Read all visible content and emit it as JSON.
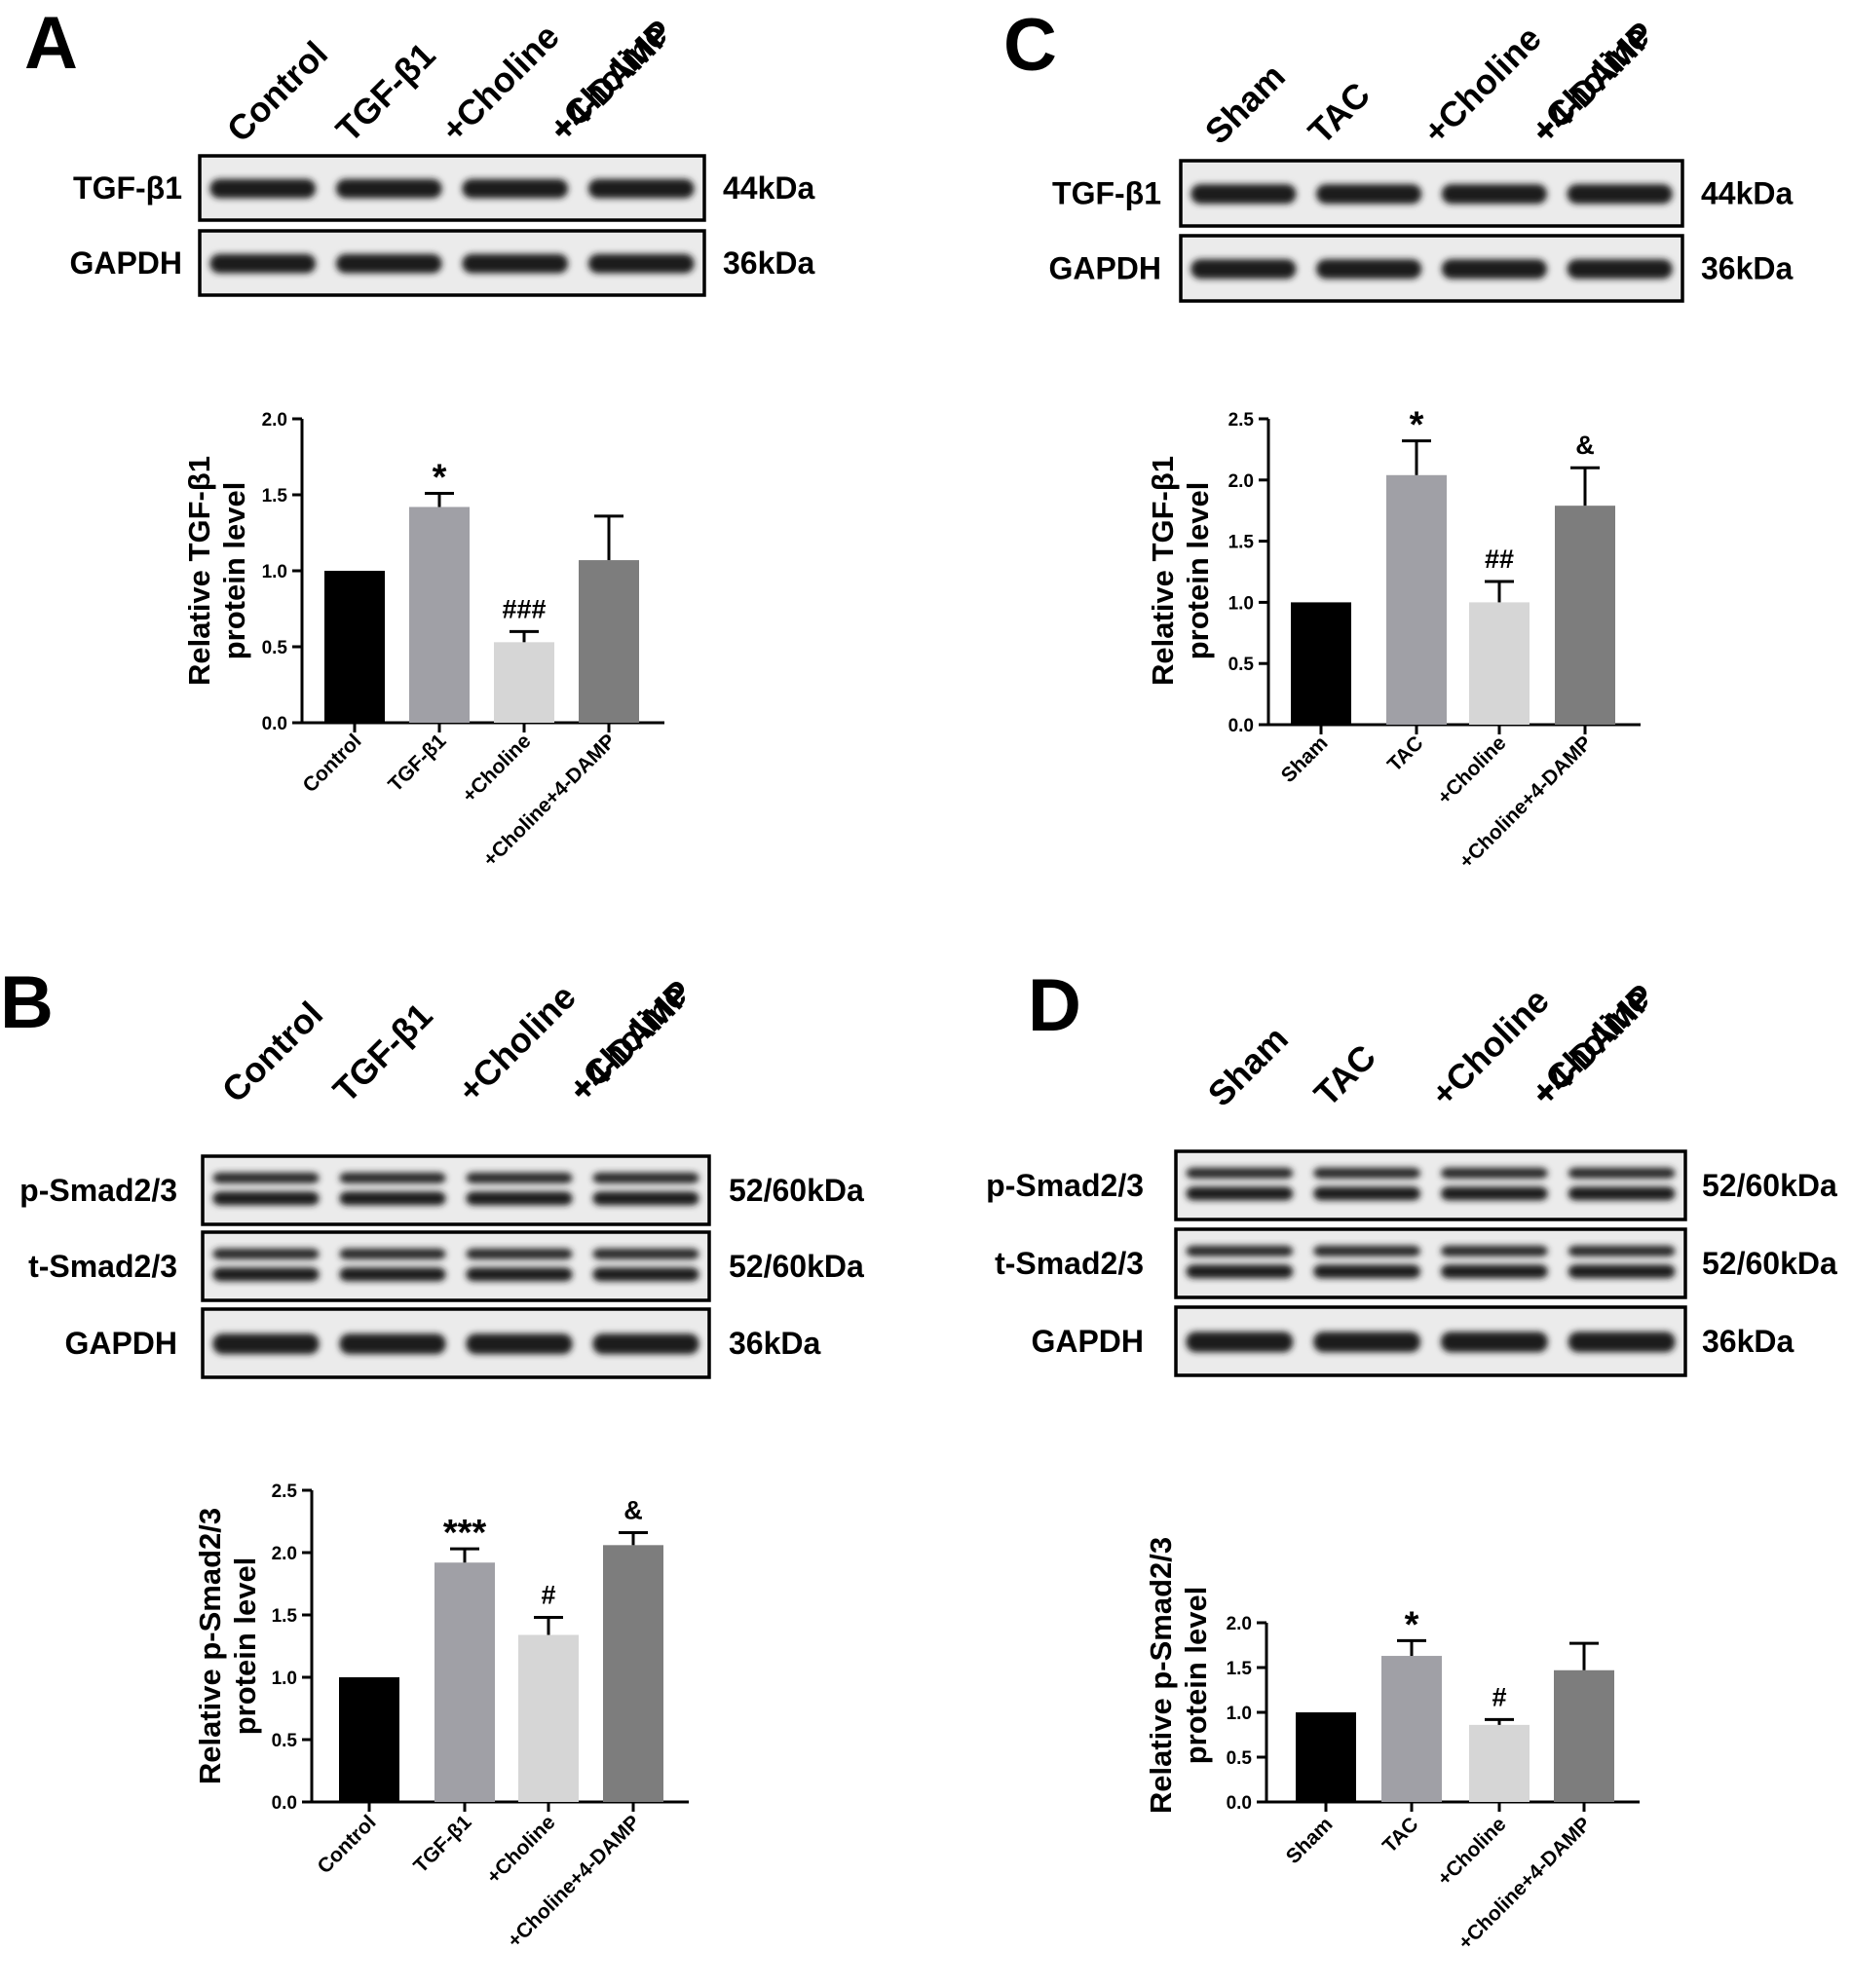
{
  "panels": [
    {
      "letter": "A",
      "lane_labels": [
        [
          "Control"
        ],
        [
          "TGF-β1"
        ],
        [
          "+Choline"
        ],
        [
          "+Choline",
          "+4-DAMP"
        ]
      ],
      "blots": [
        {
          "protein": "TGF-β1",
          "size": "44kDa",
          "bands": 1
        },
        {
          "protein": "GAPDH",
          "size": "36kDa",
          "bands": 1
        }
      ]
    },
    {
      "letter": "C",
      "lane_labels": [
        [
          "Sham"
        ],
        [
          "TAC"
        ],
        [
          "+Choline"
        ],
        [
          "+Choline",
          "+4-DAMP"
        ]
      ],
      "blots": [
        {
          "protein": "TGF-β1",
          "size": "44kDa",
          "bands": 1
        },
        {
          "protein": "GAPDH",
          "size": "36kDa",
          "bands": 1
        }
      ]
    },
    {
      "letter": "B",
      "lane_labels": [
        [
          "Control"
        ],
        [
          "TGF-β1"
        ],
        [
          "+Choline"
        ],
        [
          "+Choline",
          "+4-DAMP"
        ]
      ],
      "blots": [
        {
          "protein": "p-Smad2/3",
          "size": "52/60kDa",
          "bands": 2
        },
        {
          "protein": "t-Smad2/3",
          "size": "52/60kDa",
          "bands": 2
        },
        {
          "protein": "GAPDH",
          "size": "36kDa",
          "bands": 1
        }
      ]
    },
    {
      "letter": "D",
      "lane_labels": [
        [
          "Sham"
        ],
        [
          "TAC"
        ],
        [
          "+Choline"
        ],
        [
          "+Choline",
          "+4-DAMP"
        ]
      ],
      "blots": [
        {
          "protein": "p-Smad2/3",
          "size": "52/60kDa",
          "bands": 2
        },
        {
          "protein": "t-Smad2/3",
          "size": "52/60kDa",
          "bands": 2
        },
        {
          "protein": "GAPDH",
          "size": "36kDa",
          "bands": 1
        }
      ]
    }
  ],
  "chart_data": [
    {
      "panel": "A",
      "type": "bar",
      "categories": [
        "Control",
        "TGF-β1",
        "+Choline",
        "+Choline+4-DAMP"
      ],
      "values": [
        1.0,
        1.42,
        0.53,
        1.07
      ],
      "errors": [
        0,
        0.09,
        0.07,
        0.29
      ],
      "annotations": [
        "",
        "*",
        "###",
        ""
      ],
      "ylabel_lines": [
        "Relative TGF-β1",
        "protein level"
      ],
      "ylim": [
        0,
        2.0
      ],
      "yticks": [
        "0.0",
        "0.5",
        "1.0",
        "1.5",
        "2.0"
      ],
      "colors": [
        "#000000",
        "#a0a0a6",
        "#d6d6d6",
        "#7d7d7d"
      ]
    },
    {
      "panel": "C",
      "type": "bar",
      "categories": [
        "Sham",
        "TAC",
        "+Choline",
        "+Choline+4-DAMP"
      ],
      "values": [
        1.0,
        2.04,
        1.0,
        1.79
      ],
      "errors": [
        0,
        0.28,
        0.17,
        0.31
      ],
      "annotations": [
        "",
        "*",
        "##",
        "&"
      ],
      "ylabel_lines": [
        "Relative TGF-β1",
        "protein level"
      ],
      "ylim": [
        0,
        2.5
      ],
      "yticks": [
        "0.0",
        "0.5",
        "1.0",
        "1.5",
        "2.0",
        "2.5"
      ],
      "colors": [
        "#000000",
        "#a0a0a6",
        "#d6d6d6",
        "#7d7d7d"
      ]
    },
    {
      "panel": "B",
      "type": "bar",
      "categories": [
        "Control",
        "TGF-β1",
        "+Choline",
        "+Choline+4-DAMP"
      ],
      "values": [
        1.0,
        1.92,
        1.34,
        2.06
      ],
      "errors": [
        0,
        0.11,
        0.14,
        0.1
      ],
      "annotations": [
        "",
        "***",
        "#",
        "&"
      ],
      "ylabel_lines": [
        "Relative p-Smad2/3",
        "protein level"
      ],
      "ylim": [
        0,
        2.5
      ],
      "yticks": [
        "0.0",
        "0.5",
        "1.0",
        "1.5",
        "2.0",
        "2.5"
      ],
      "colors": [
        "#000000",
        "#a0a0a6",
        "#d6d6d6",
        "#7d7d7d"
      ]
    },
    {
      "panel": "D",
      "type": "bar",
      "categories": [
        "Sham",
        "TAC",
        "+Choline",
        "+Choline+4-DAMP"
      ],
      "values": [
        1.0,
        1.63,
        0.86,
        1.47
      ],
      "errors": [
        0,
        0.17,
        0.06,
        0.3
      ],
      "annotations": [
        "",
        "*",
        "#",
        ""
      ],
      "ylabel_lines": [
        "Relative p-Smad2/3",
        "protein level"
      ],
      "ylim": [
        0,
        2.0
      ],
      "yticks": [
        "0.0",
        "0.5",
        "1.0",
        "1.5",
        "2.0"
      ],
      "colors": [
        "#000000",
        "#a0a0a6",
        "#d6d6d6",
        "#7d7d7d"
      ]
    }
  ]
}
